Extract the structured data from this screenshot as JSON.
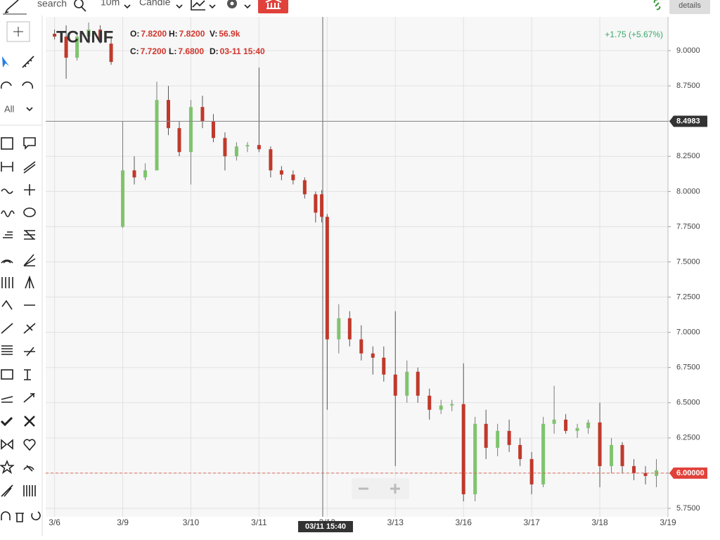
{
  "toolbar": {
    "search": "search",
    "interval": "10m",
    "chart_style": "Candle",
    "market_details": "market details",
    "tool_filter": "All"
  },
  "legend": {
    "symbol": "TCNNF",
    "ohlc": [
      {
        "label": "O:",
        "value": "7.8200"
      },
      {
        "label": "H:",
        "value": "7.8200"
      },
      {
        "label": "V:",
        "value": "56.9k"
      },
      {
        "label": "C:",
        "value": "7.7200"
      },
      {
        "label": "L:",
        "value": "7.6800"
      },
      {
        "label": "D:",
        "value": "03-11 15:40"
      }
    ],
    "change": "+1.75 (+5.67%)"
  },
  "chart_data": {
    "type": "candlestick",
    "x": [
      0,
      0.17,
      0.33,
      0.5,
      0.67,
      0.83,
      1.0,
      1.17,
      1.33,
      1.5,
      1.67,
      1.83,
      2.0,
      2.17,
      2.33,
      2.5,
      2.67,
      2.83,
      3.0,
      3.17,
      3.33,
      3.5,
      3.67,
      3.83,
      3.92,
      4.0,
      4.17,
      4.33,
      4.5,
      4.67,
      4.83,
      5.0,
      5.17,
      5.33,
      5.5,
      5.67,
      5.83,
      6.0,
      6.17,
      6.33,
      6.5,
      6.67,
      6.83,
      7.0,
      7.17,
      7.33,
      7.5,
      7.67,
      7.83,
      8.0,
      8.17,
      8.33,
      8.5,
      8.67,
      8.83
    ],
    "open": [
      9.12,
      9.1,
      8.95,
      9.1,
      9.15,
      9.05,
      7.75,
      8.15,
      8.1,
      8.15,
      8.65,
      8.45,
      8.28,
      8.6,
      8.5,
      8.38,
      8.25,
      8.32,
      8.33,
      8.3,
      8.15,
      8.12,
      8.08,
      7.98,
      7.98,
      7.82,
      6.95,
      7.1,
      6.95,
      6.85,
      6.82,
      6.7,
      6.55,
      6.72,
      6.55,
      6.45,
      6.48,
      6.49,
      5.85,
      6.35,
      6.18,
      6.3,
      6.2,
      6.1,
      5.92,
      6.35,
      6.38,
      6.3,
      6.32,
      6.36,
      6.05,
      6.2,
      6.05,
      6.0,
      5.98
    ],
    "high": [
      9.15,
      9.18,
      9.12,
      9.2,
      9.18,
      9.1,
      8.5,
      8.25,
      8.2,
      8.78,
      8.75,
      8.5,
      8.65,
      8.68,
      8.55,
      8.42,
      8.35,
      8.35,
      8.88,
      8.32,
      8.18,
      8.15,
      8.1,
      8.0,
      8.01,
      7.84,
      7.2,
      7.15,
      7.05,
      6.9,
      6.9,
      7.15,
      6.8,
      6.75,
      6.6,
      6.52,
      6.52,
      6.78,
      6.4,
      6.45,
      6.35,
      6.38,
      6.25,
      6.15,
      6.4,
      6.62,
      6.42,
      6.35,
      6.38,
      6.5,
      6.25,
      6.22,
      6.1,
      6.05,
      6.1
    ],
    "low": [
      9.08,
      8.8,
      8.93,
      9.05,
      9.05,
      8.9,
      7.74,
      8.05,
      8.08,
      8.15,
      8.4,
      8.25,
      8.05,
      8.45,
      8.35,
      8.15,
      8.22,
      8.28,
      8.28,
      8.1,
      8.08,
      8.05,
      7.95,
      7.78,
      7.78,
      6.45,
      6.85,
      6.9,
      6.8,
      6.7,
      6.65,
      6.05,
      6.5,
      6.5,
      6.38,
      6.42,
      6.44,
      5.8,
      5.8,
      6.1,
      6.12,
      6.15,
      6.05,
      5.85,
      5.9,
      6.28,
      6.28,
      6.25,
      6.28,
      5.9,
      6.0,
      6.0,
      5.95,
      5.92,
      5.9
    ],
    "close": [
      9.1,
      8.95,
      9.1,
      9.15,
      9.08,
      8.92,
      8.15,
      8.1,
      8.15,
      8.65,
      8.45,
      8.28,
      8.6,
      8.5,
      8.38,
      8.25,
      8.32,
      8.33,
      8.3,
      8.15,
      8.12,
      8.08,
      7.98,
      7.85,
      7.82,
      6.95,
      7.1,
      6.95,
      6.85,
      6.82,
      6.7,
      6.55,
      6.72,
      6.55,
      6.45,
      6.48,
      6.49,
      5.85,
      6.35,
      6.18,
      6.3,
      6.2,
      6.1,
      5.92,
      6.35,
      6.38,
      6.3,
      6.32,
      6.36,
      6.05,
      6.2,
      6.05,
      6.0,
      5.98,
      6.02
    ],
    "up_color": "#7fc46e",
    "down_color": "#c0392b",
    "xlim": [
      -0.13,
      9.0
    ],
    "xticks": [
      {
        "value": 0,
        "label": "3/6"
      },
      {
        "value": 1,
        "label": "3/9"
      },
      {
        "value": 2,
        "label": "3/10"
      },
      {
        "value": 3,
        "label": "3/11"
      },
      {
        "value": 4,
        "label": "3/12"
      },
      {
        "value": 5,
        "label": "3/13"
      },
      {
        "value": 6,
        "label": "3/16"
      },
      {
        "value": 7,
        "label": "3/17"
      },
      {
        "value": 8,
        "label": "3/18"
      },
      {
        "value": 9,
        "label": "3/19"
      }
    ],
    "ylim": [
      5.69,
      9.24
    ],
    "yticks": [
      {
        "value": 5.75,
        "label": "5.7500"
      },
      {
        "value": 6,
        "label": "6.0000"
      },
      {
        "value": 6.25,
        "label": "6.2500"
      },
      {
        "value": 6.5,
        "label": "6.5000"
      },
      {
        "value": 6.75,
        "label": "6.7500"
      },
      {
        "value": 7,
        "label": "7.0000"
      },
      {
        "value": 7.25,
        "label": "7.2500"
      },
      {
        "value": 7.5,
        "label": "7.5000"
      },
      {
        "value": 7.75,
        "label": "7.7500"
      },
      {
        "value": 8,
        "label": "8.0000"
      },
      {
        "value": 8.25,
        "label": "8.2500"
      },
      {
        "value": 8.5,
        "label": "8.5000"
      },
      {
        "value": 8.75,
        "label": "8.7500"
      },
      {
        "value": 9,
        "label": "9.0000"
      }
    ],
    "grid": true,
    "crosshair_price": 8.4983,
    "crosshair_time": "03/11 15:40",
    "last_price": {
      "value": 6,
      "label": "6.00000"
    }
  }
}
